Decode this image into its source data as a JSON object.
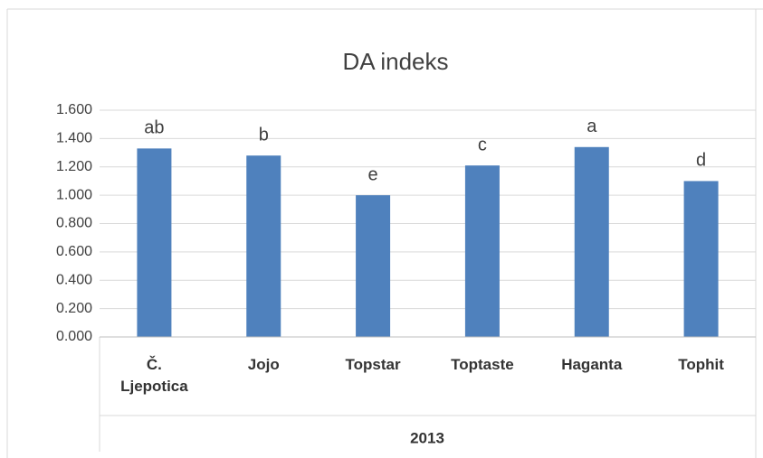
{
  "chart_data": {
    "type": "bar",
    "title": "DA indeks",
    "categories": [
      "Č. Ljepotica",
      "Jojo",
      "Topstar",
      "Toptaste",
      "Haganta",
      "Tophit"
    ],
    "values": [
      1.33,
      1.28,
      1.0,
      1.21,
      1.34,
      1.1
    ],
    "annotations": [
      "ab",
      "b",
      "e",
      "c",
      "a",
      "d"
    ],
    "group_label": "2013",
    "color": "#4f81bd",
    "ylim": [
      0,
      1.6
    ],
    "yticks": [
      {
        "value": 0,
        "label": "0.000"
      },
      {
        "value": 0.2,
        "label": "0.200"
      },
      {
        "value": 0.4,
        "label": "0.400"
      },
      {
        "value": 0.6,
        "label": "0.600"
      },
      {
        "value": 0.8,
        "label": "0.800"
      },
      {
        "value": 1.0,
        "label": "1.000"
      },
      {
        "value": 1.2,
        "label": "1.200"
      },
      {
        "value": 1.4,
        "label": "1.400"
      },
      {
        "value": 1.6,
        "label": "1.600"
      }
    ],
    "grid": true
  }
}
